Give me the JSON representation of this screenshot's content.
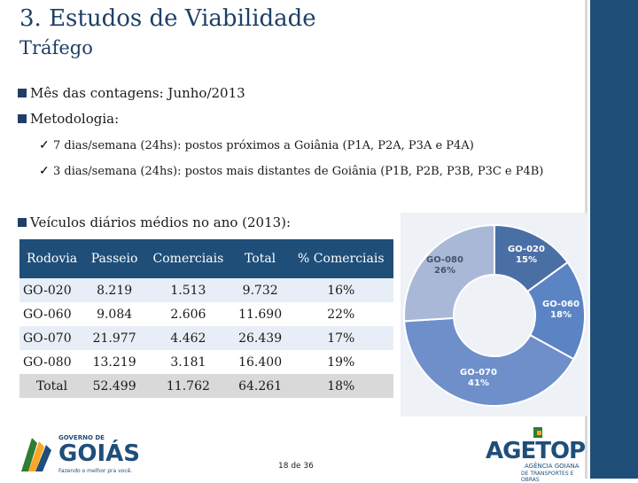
{
  "slide": {
    "title": "3. Estudos de Viabilidade",
    "subtitle": "Tráfego",
    "bullets": [
      "Mês das contagens: Junho/2013",
      "Metodologia:",
      "Veículos diários médios no ano (2013):"
    ],
    "sub_bullets": [
      "7 dias/semana (24hs): postos próximos a Goiânia (P1A, P2A, P3A e P4A)",
      "3 dias/semana (24hs): postos mais distantes de Goiânia (P1B, P2B, P3B, P3C e P4B)"
    ],
    "page_number": "18 de 36"
  },
  "table": {
    "headers": [
      "Rodovia",
      "Passeio",
      "Comerciais",
      "Total",
      "% Comerciais"
    ],
    "rows": [
      [
        "GO-020",
        "8.219",
        "1.513",
        "9.732",
        "16%"
      ],
      [
        "GO-060",
        "9.084",
        "2.606",
        "11.690",
        "22%"
      ],
      [
        "GO-070",
        "21.977",
        "4.462",
        "26.439",
        "17%"
      ],
      [
        "GO-080",
        "13.219",
        "3.181",
        "16.400",
        "19%"
      ],
      [
        "Total",
        "52.499",
        "11.762",
        "64.261",
        "18%"
      ]
    ]
  },
  "chart_data": {
    "type": "pie",
    "categories": [
      "GO-020",
      "GO-060",
      "GO-070",
      "GO-080"
    ],
    "values": [
      15,
      18,
      41,
      26
    ],
    "labels": [
      "15%",
      "18%",
      "41%",
      "26%"
    ],
    "colors": [
      "#4a6fa5",
      "#5b84c4",
      "#6f8fca",
      "#aab8d8"
    ]
  },
  "logos": {
    "goias_top": "GOVERNO DE",
    "goias_main": "GOIÁS",
    "goias_tagline": "Fazendo o melhor pra você.",
    "agetop_main": "AGETOP",
    "agetop_line1": "AGÊNCIA GOIANA",
    "agetop_line2": "DE TRANSPORTES E OBRAS"
  },
  "colors": {
    "accent": "#1f4e79",
    "title": "#1f3f66"
  }
}
